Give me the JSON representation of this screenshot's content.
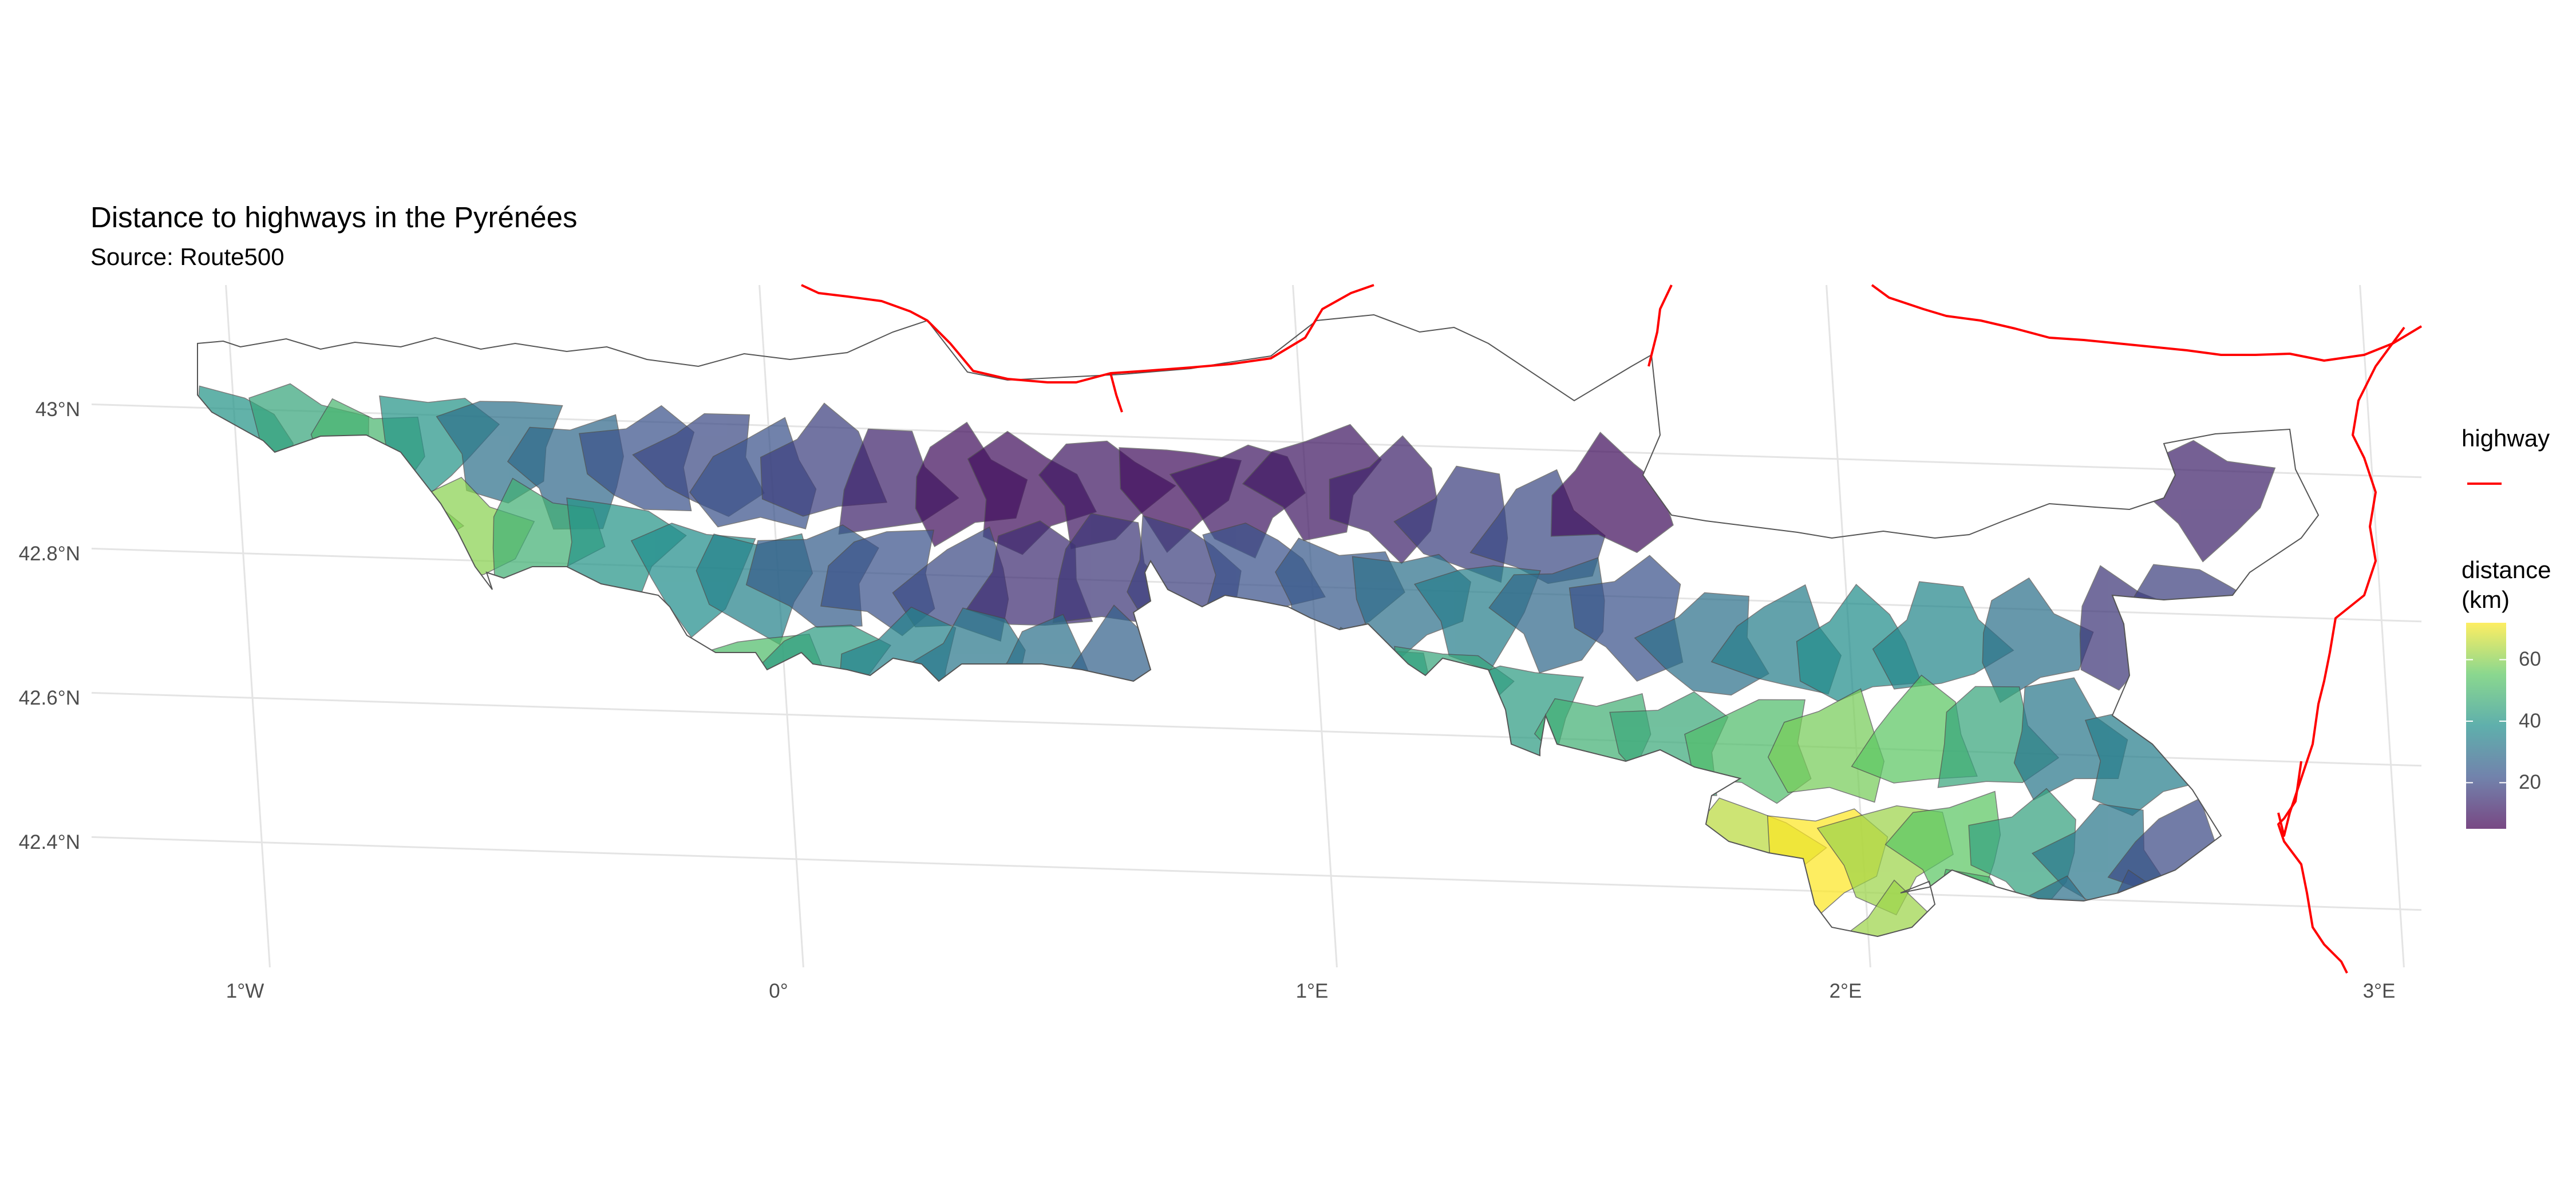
{
  "title": "Distance to highways in the Pyrénées",
  "subtitle": "Source: Route500",
  "axes": {
    "lat_labels": [
      "43°N",
      "42.8°N",
      "42.6°N",
      "42.4°N"
    ],
    "lon_labels": [
      "1°W",
      "0°",
      "1°E",
      "2°E",
      "3°E"
    ],
    "lat_values": [
      43.0,
      42.8,
      42.6,
      42.4
    ],
    "lon_values": [
      -1,
      0,
      1,
      2,
      3
    ],
    "lon_range": [
      -1.45,
      3.1
    ],
    "lat_range": [
      42.22,
      43.18
    ],
    "grid": true
  },
  "legend": {
    "highway_title": "highway",
    "highway_color": "#ff0000",
    "distance_title_line1": "distance",
    "distance_title_line2": "(km)",
    "distance_ticks": [
      "60",
      "40",
      "20"
    ],
    "distance_tick_values": [
      60,
      40,
      20
    ],
    "distance_range": [
      5,
      72
    ],
    "placement": "right"
  },
  "colors": {
    "viridis": [
      "#440154",
      "#3b528b",
      "#21908c",
      "#5dc863",
      "#fde725"
    ]
  },
  "map_data": {
    "type": "choropleth",
    "regions": [
      {
        "lon": -1.0,
        "lat": 42.96,
        "d": 40
      },
      {
        "lon": -0.88,
        "lat": 42.97,
        "d": 45
      },
      {
        "lon": -0.76,
        "lat": 42.95,
        "d": 50
      },
      {
        "lon": -0.63,
        "lat": 42.97,
        "d": 40
      },
      {
        "lon": -0.5,
        "lat": 42.97,
        "d": 30
      },
      {
        "lon": -0.37,
        "lat": 42.94,
        "d": 28
      },
      {
        "lon": -0.24,
        "lat": 42.95,
        "d": 22
      },
      {
        "lon": -0.12,
        "lat": 42.95,
        "d": 20
      },
      {
        "lon": -0.02,
        "lat": 42.93,
        "d": 22
      },
      {
        "lon": 0.1,
        "lat": 42.95,
        "d": 18
      },
      {
        "lon": 0.22,
        "lat": 42.93,
        "d": 12
      },
      {
        "lon": 0.36,
        "lat": 42.93,
        "d": 8
      },
      {
        "lon": 0.48,
        "lat": 42.92,
        "d": 8
      },
      {
        "lon": 0.62,
        "lat": 42.93,
        "d": 10
      },
      {
        "lon": 0.76,
        "lat": 42.94,
        "d": 8
      },
      {
        "lon": 0.88,
        "lat": 42.93,
        "d": 10
      },
      {
        "lon": 1.02,
        "lat": 42.95,
        "d": 10
      },
      {
        "lon": 1.16,
        "lat": 42.93,
        "d": 12
      },
      {
        "lon": 1.3,
        "lat": 42.9,
        "d": 18
      },
      {
        "lon": 1.44,
        "lat": 42.89,
        "d": 20
      },
      {
        "lon": 1.57,
        "lat": 42.94,
        "d": 8
      },
      {
        "lon": -0.72,
        "lat": 42.86,
        "d": 55
      },
      {
        "lon": -0.58,
        "lat": 42.84,
        "d": 60
      },
      {
        "lon": -0.44,
        "lat": 42.84,
        "d": 48
      },
      {
        "lon": -0.3,
        "lat": 42.83,
        "d": 40
      },
      {
        "lon": -0.16,
        "lat": 42.8,
        "d": 38
      },
      {
        "lon": -0.04,
        "lat": 42.79,
        "d": 35
      },
      {
        "lon": 0.08,
        "lat": 42.8,
        "d": 25
      },
      {
        "lon": 0.2,
        "lat": 42.8,
        "d": 22
      },
      {
        "lon": 0.34,
        "lat": 42.79,
        "d": 20
      },
      {
        "lon": 0.48,
        "lat": 42.8,
        "d": 14
      },
      {
        "lon": 0.62,
        "lat": 42.81,
        "d": 16
      },
      {
        "lon": 0.76,
        "lat": 42.82,
        "d": 18
      },
      {
        "lon": 0.9,
        "lat": 42.82,
        "d": 22
      },
      {
        "lon": 1.04,
        "lat": 42.8,
        "d": 24
      },
      {
        "lon": 1.18,
        "lat": 42.79,
        "d": 30
      },
      {
        "lon": 1.32,
        "lat": 42.78,
        "d": 34
      },
      {
        "lon": 1.46,
        "lat": 42.78,
        "d": 28
      },
      {
        "lon": 1.6,
        "lat": 42.78,
        "d": 22
      },
      {
        "lon": 1.74,
        "lat": 42.74,
        "d": 30
      },
      {
        "lon": 1.88,
        "lat": 42.74,
        "d": 34
      },
      {
        "lon": 2.02,
        "lat": 42.74,
        "d": 38
      },
      {
        "lon": 2.18,
        "lat": 42.76,
        "d": 36
      },
      {
        "lon": 2.34,
        "lat": 42.76,
        "d": 30
      },
      {
        "lon": 2.52,
        "lat": 42.78,
        "d": 16
      },
      {
        "lon": 2.66,
        "lat": 42.8,
        "d": 18
      },
      {
        "lon": 2.7,
        "lat": 42.97,
        "d": 12
      },
      {
        "lon": -0.04,
        "lat": 42.66,
        "d": 52
      },
      {
        "lon": 0.08,
        "lat": 42.67,
        "d": 42
      },
      {
        "lon": 0.22,
        "lat": 42.67,
        "d": 35
      },
      {
        "lon": 0.36,
        "lat": 42.68,
        "d": 32
      },
      {
        "lon": 0.5,
        "lat": 42.67,
        "d": 30
      },
      {
        "lon": 0.64,
        "lat": 42.68,
        "d": 26
      },
      {
        "lon": 0.8,
        "lat": 42.7,
        "d": 28
      },
      {
        "lon": 0.94,
        "lat": 42.7,
        "d": 30
      },
      {
        "lon": 1.1,
        "lat": 42.67,
        "d": 40
      },
      {
        "lon": 1.24,
        "lat": 42.66,
        "d": 45
      },
      {
        "lon": 1.38,
        "lat": 42.64,
        "d": 42
      },
      {
        "lon": 1.52,
        "lat": 42.6,
        "d": 48
      },
      {
        "lon": 1.66,
        "lat": 42.6,
        "d": 46
      },
      {
        "lon": 1.82,
        "lat": 42.6,
        "d": 52
      },
      {
        "lon": 1.96,
        "lat": 42.6,
        "d": 58
      },
      {
        "lon": 2.12,
        "lat": 42.62,
        "d": 55
      },
      {
        "lon": 2.26,
        "lat": 42.62,
        "d": 45
      },
      {
        "lon": 2.4,
        "lat": 42.62,
        "d": 32
      },
      {
        "lon": 2.54,
        "lat": 42.6,
        "d": 34
      },
      {
        "lon": 1.8,
        "lat": 42.46,
        "d": 65
      },
      {
        "lon": 1.93,
        "lat": 42.45,
        "d": 72
      },
      {
        "lon": 2.05,
        "lat": 42.46,
        "d": 62
      },
      {
        "lon": 2.18,
        "lat": 42.47,
        "d": 55
      },
      {
        "lon": 2.32,
        "lat": 42.47,
        "d": 44
      },
      {
        "lon": 2.46,
        "lat": 42.46,
        "d": 32
      },
      {
        "lon": 2.6,
        "lat": 42.46,
        "d": 20
      },
      {
        "lon": 2.06,
        "lat": 42.33,
        "d": 62
      },
      {
        "lon": 2.2,
        "lat": 42.36,
        "d": 50
      },
      {
        "lon": 2.38,
        "lat": 42.35,
        "d": 30
      },
      {
        "lon": 2.54,
        "lat": 42.36,
        "d": 22
      }
    ]
  }
}
